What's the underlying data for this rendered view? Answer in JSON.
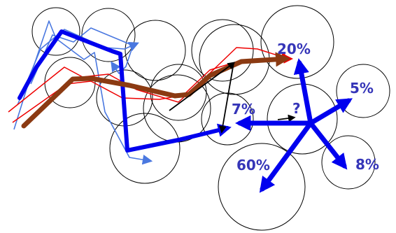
{
  "colors": {
    "background": "#ffffff",
    "circle": "#000000",
    "blue_thick": "#0000ee",
    "blue_thin": "#4a78e0",
    "red_thin": "#ee0000",
    "brown": "#8b3a12",
    "black": "#000000",
    "label": "#3535b8"
  },
  "labels": {
    "p20": "20%",
    "p5": "5%",
    "p7": "7%",
    "question": "?",
    "p60": "60%",
    "p8": "8%"
  }
}
